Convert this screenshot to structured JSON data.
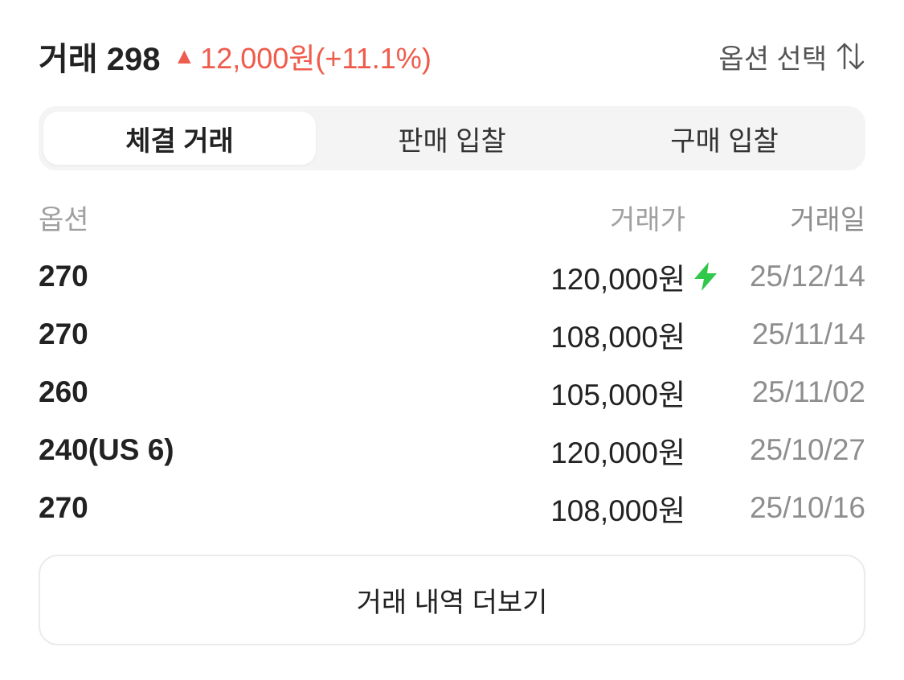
{
  "header": {
    "title": "거래 298",
    "change_icon": "triangle-up-icon",
    "change": "12,000원(+11.1%)",
    "change_color": "#ef5b4c",
    "option_select": "옵션 선택",
    "sort_icon": "sort-arrows-icon"
  },
  "tabs": [
    {
      "label": "체결 거래",
      "active": true
    },
    {
      "label": "판매 입찰",
      "active": false
    },
    {
      "label": "구매 입찰",
      "active": false
    }
  ],
  "table": {
    "columns": [
      "옵션",
      "거래가",
      "거래일"
    ],
    "rows": [
      {
        "option": "270",
        "price": "120,000원",
        "date": "25/12/14",
        "fast": true
      },
      {
        "option": "270",
        "price": "108,000원",
        "date": "25/11/14",
        "fast": false
      },
      {
        "option": "260",
        "price": "105,000원",
        "date": "25/11/02",
        "fast": false
      },
      {
        "option": "240(US 6)",
        "price": "120,000원",
        "date": "25/10/27",
        "fast": false
      },
      {
        "option": "270",
        "price": "108,000원",
        "date": "25/10/16",
        "fast": false
      }
    ]
  },
  "more_button": "거래 내역 더보기"
}
